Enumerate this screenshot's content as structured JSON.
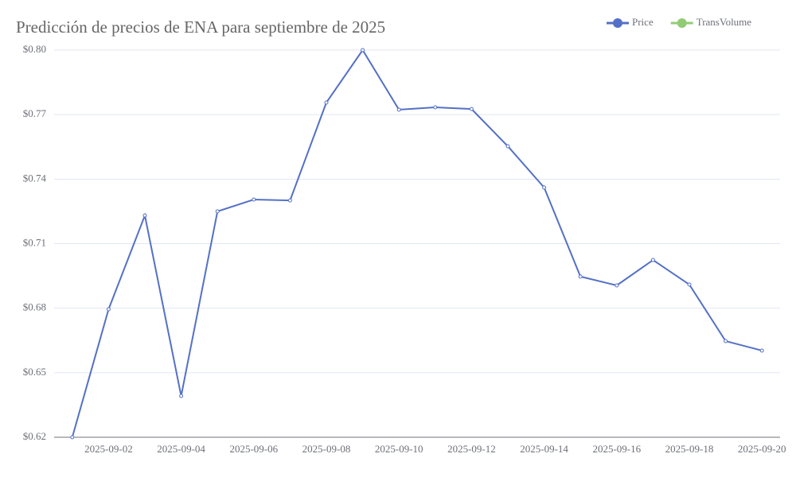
{
  "chart_data": {
    "type": "line",
    "title": "Predicción de precios de ENA para septiembre de 2025",
    "categories": [
      null,
      "2025-09-02",
      null,
      "2025-09-04",
      null,
      "2025-09-06",
      null,
      "2025-09-08",
      null,
      "2025-09-10",
      null,
      "2025-09-12",
      null,
      "2025-09-14",
      null,
      "2025-09-16",
      null,
      "2025-09-18",
      null,
      "2025-09-20"
    ],
    "series": [
      {
        "name": "Price",
        "color": "#5470c6",
        "values": [
          0.62,
          0.6795,
          0.7231,
          0.6392,
          0.725,
          0.7305,
          0.7301,
          0.7756,
          0.8,
          0.7723,
          0.7734,
          0.7726,
          0.7553,
          0.7361,
          0.6947,
          0.6906,
          0.7024,
          0.691,
          0.6647,
          0.6603
        ]
      },
      {
        "name": "TransVolume",
        "color": "#91cc75",
        "values": [
          null,
          null,
          null,
          null,
          null,
          null,
          null,
          null,
          null,
          null,
          null,
          null,
          null,
          null,
          null,
          null,
          null,
          null,
          null,
          null
        ]
      }
    ],
    "ylim": [
      0.62,
      0.8
    ],
    "yticks": [
      {
        "value": 0.62,
        "label": "$0.62"
      },
      {
        "value": 0.65,
        "label": "$0.65"
      },
      {
        "value": 0.68,
        "label": "$0.68"
      },
      {
        "value": 0.71,
        "label": "$0.71"
      },
      {
        "value": 0.74,
        "label": "$0.74"
      },
      {
        "value": 0.77,
        "label": "$0.77"
      },
      {
        "value": 0.8,
        "label": "$0.80"
      }
    ],
    "grid": true
  }
}
